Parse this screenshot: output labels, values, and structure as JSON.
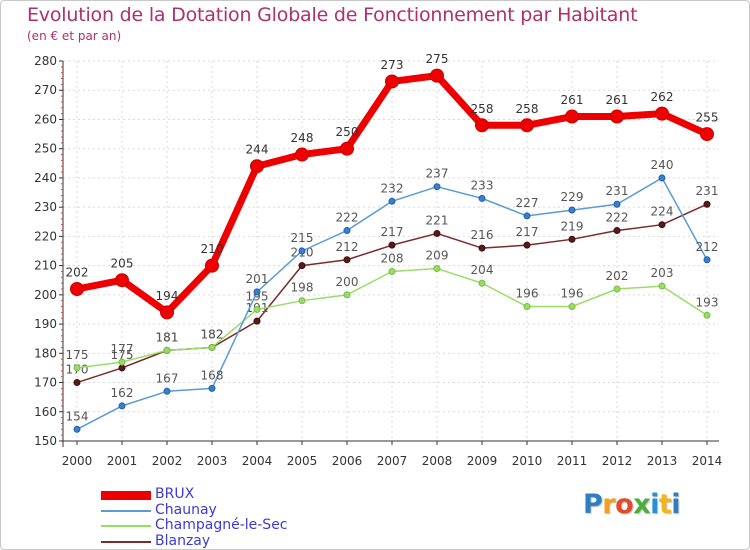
{
  "title": "Evolution de la Dotation Globale de Fonctionnement par Habitant",
  "subtitle": "(en € et par an)",
  "logo_text": "Proxiti",
  "chart_data": {
    "type": "line",
    "title": "Evolution de la Dotation Globale de Fonctionnement par Habitant",
    "subtitle": "(en € et par an)",
    "xlabel": "",
    "ylabel": "",
    "ylim": [
      150,
      280
    ],
    "yticks": [
      150,
      160,
      170,
      180,
      190,
      200,
      210,
      220,
      230,
      240,
      250,
      260,
      270,
      280
    ],
    "grid": true,
    "legend_position": "bottom-left",
    "categories": [
      "2000",
      "2001",
      "2002",
      "2003",
      "2004",
      "2005",
      "2006",
      "2007",
      "2008",
      "2009",
      "2010",
      "2011",
      "2012",
      "2013",
      "2014"
    ],
    "series": [
      {
        "name": "BRUX",
        "color": "#ee0000",
        "values": [
          202,
          205,
          194,
          210,
          244,
          248,
          250,
          273,
          275,
          258,
          258,
          261,
          261,
          262,
          255
        ]
      },
      {
        "name": "Chaunay",
        "color": "#5b9bd5",
        "values": [
          154,
          162,
          167,
          168,
          201,
          215,
          222,
          232,
          237,
          233,
          227,
          229,
          231,
          240,
          212
        ]
      },
      {
        "name": "Champagné-le-Sec",
        "color": "#99dd66",
        "values": [
          175,
          177,
          181,
          182,
          195,
          198,
          200,
          208,
          209,
          204,
          196,
          196,
          202,
          203,
          193
        ]
      },
      {
        "name": "Blanzay",
        "color": "#7a2b2b",
        "values": [
          170,
          175,
          181,
          182,
          191,
          210,
          212,
          217,
          221,
          216,
          217,
          219,
          222,
          224,
          231
        ]
      }
    ]
  }
}
